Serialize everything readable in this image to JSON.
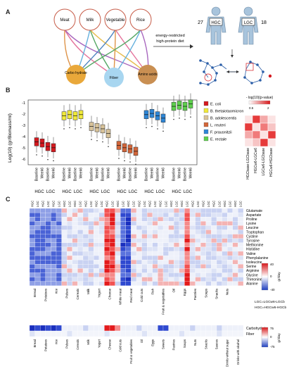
{
  "panel_a": {
    "label": "A",
    "foods": [
      "Meat",
      "Milk",
      "Vegetable",
      "Rice"
    ],
    "nutrients": [
      "Carbo hydrate",
      "Fiber",
      "Amino acids"
    ],
    "diet_text_1": "energy-restricted",
    "diet_text_2": "high-protein diet",
    "hgc": "HGC",
    "lgc": "LGC",
    "hgc_n": "27",
    "lgc_n": "18"
  },
  "panel_b": {
    "label": "B",
    "ylabel": "Log(10) (gr/Biomass/ml)",
    "yticks": [
      "-1",
      "-2",
      "-3",
      "-4",
      "-5",
      "-6"
    ],
    "legend": [
      {
        "name": "E. coli",
        "color": "#d4191f"
      },
      {
        "name": "B. thetaiotaomicron",
        "color": "#f0e93a"
      },
      {
        "name": "B. adolescentis",
        "color": "#d8c39a"
      },
      {
        "name": "L. reuteri",
        "color": "#d2663a"
      },
      {
        "name": "F. prausnitzii",
        "color": "#2e86d6"
      },
      {
        "name": "E. rectale",
        "color": "#5ecf4d"
      }
    ],
    "xticks": [
      "Baseline",
      "Week6",
      "Baseline",
      "Week6"
    ],
    "group_labels": [
      "HGC",
      "LGC"
    ],
    "heat_title": "- log(10)(p-value)",
    "heat_scale_min": "0.5",
    "heat_scale_max": "2",
    "heat_labels": [
      "HGCbase-LGCbase",
      "HGCw6-LGCw6",
      "LGCw6-LGCbase",
      "HGCw6-HGCbase"
    ]
  },
  "panel_c": {
    "label": "C",
    "top_groups": [
      "HGC",
      "LGC",
      "HGC",
      "LGC",
      "HGC",
      "LGC",
      "HGC",
      "LGC",
      "HGC",
      "LGC",
      "HGC",
      "LGC",
      "HGC",
      "LGC",
      "HGC",
      "LGC",
      "HGC",
      "LGC",
      "HGC",
      "LGC",
      "HGC",
      "LGC",
      "HGC",
      "LGC",
      "HGC",
      "LGC",
      "HGC",
      "LGC",
      "HGC",
      "LGC",
      "HGC",
      "LGC",
      "HGC",
      "LGC",
      "HGC",
      "LGC",
      "HGC",
      "LGC",
      "HGC",
      "LGC"
    ],
    "amino_acids": [
      "Glutamate",
      "Aspartate",
      "Proline",
      "Lysine",
      "Leucine",
      "Tryptophan",
      "Cystine",
      "Tyrosine",
      "Methionine",
      "Histidine",
      "Valine",
      "Phenylalanine",
      "Isoleucine",
      "Serine",
      "Arginine",
      "Glycine",
      "Threonine",
      "Alanine"
    ],
    "foods": [
      "Bread",
      "Potatoes",
      "rice",
      "Pulses",
      "Cereals",
      "Milk",
      "Yogurt",
      "Cheese",
      "White meat",
      "Red meat",
      "Cold cuts",
      "Fish",
      "Fruit & vegetables",
      "Oil",
      "Eggs",
      "Pastries",
      "Soups",
      "Snacks",
      "Nuts"
    ],
    "scale_label": "gr/day",
    "scale_max": "40",
    "scale_zero": "0",
    "scale_min": "-40",
    "delta_1": "LGC=LGCw6-LGCb",
    "delta_2": "HGC=HGCw6-HGCb",
    "bottom_rows": [
      "Carbohydrate",
      "Fiber"
    ],
    "bottom_foods": [
      "Bread",
      "Potatoes",
      "rice",
      "Pulses",
      "Cereals",
      "Milk",
      "Yogurt",
      "Cheese",
      "Cold cuts",
      "Fruit & vegetables",
      "Oil",
      "Eggs",
      "Sweets",
      "Pastries",
      "Soups",
      "Nuts",
      "Snacks",
      "Sauces",
      "Drinks without sugar",
      "Drinks with alcohol"
    ],
    "bottom_scale_label": "gr/day",
    "bottom_scale_max": "75",
    "bottom_scale_zero": "0",
    "bottom_scale_min": "-75"
  }
}
